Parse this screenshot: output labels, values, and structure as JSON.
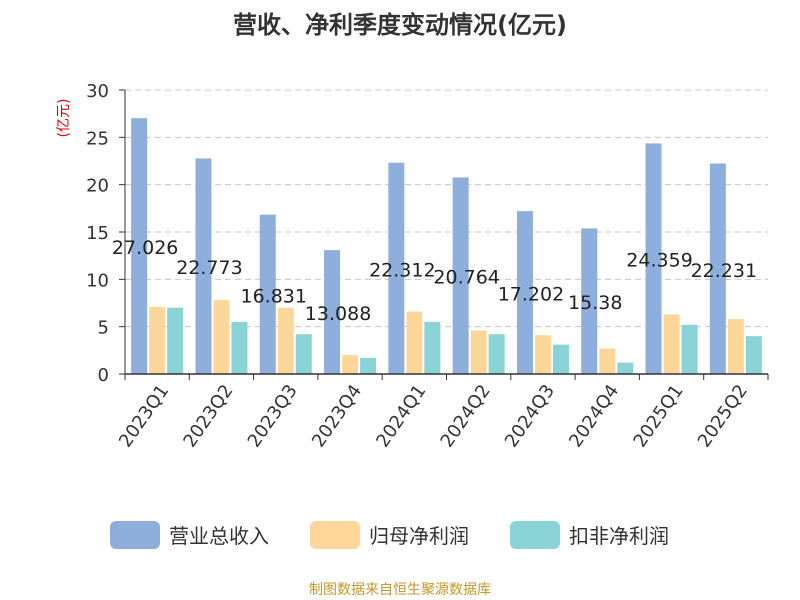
{
  "chart_data": {
    "type": "bar",
    "title": "营收、净利季度变动情况(亿元)",
    "ylabel": "(亿元)",
    "xlabel": "",
    "ylim": [
      0,
      30
    ],
    "yticks": [
      0,
      5,
      10,
      15,
      20,
      25,
      30
    ],
    "grid": true,
    "legend_position": "bottom",
    "categories": [
      "2023Q1",
      "2023Q2",
      "2023Q3",
      "2023Q4",
      "2024Q1",
      "2024Q2",
      "2024Q3",
      "2024Q4",
      "2025Q1",
      "2025Q2"
    ],
    "series": [
      {
        "name": "营业总收入",
        "color": "#8eaedc",
        "values": [
          27.026,
          22.773,
          16.831,
          13.088,
          22.312,
          20.764,
          17.202,
          15.38,
          24.359,
          22.231
        ]
      },
      {
        "name": "归母净利润",
        "color": "#fdd799",
        "values": [
          7.1,
          7.8,
          7.0,
          2.0,
          6.6,
          4.6,
          4.1,
          2.7,
          6.3,
          5.8
        ]
      },
      {
        "name": "扣非净利润",
        "color": "#8ad3d6",
        "values": [
          7.0,
          5.5,
          4.2,
          1.7,
          5.5,
          4.2,
          3.1,
          1.2,
          5.2,
          4.0
        ]
      }
    ],
    "data_labels": [
      "27.026",
      "22.773",
      "16.831",
      "13.088",
      "22.312",
      "20.764",
      "17.202",
      "15.38",
      "24.359",
      "22.231"
    ]
  },
  "footer": {
    "source": "制图数据来自恒生聚源数据库"
  }
}
